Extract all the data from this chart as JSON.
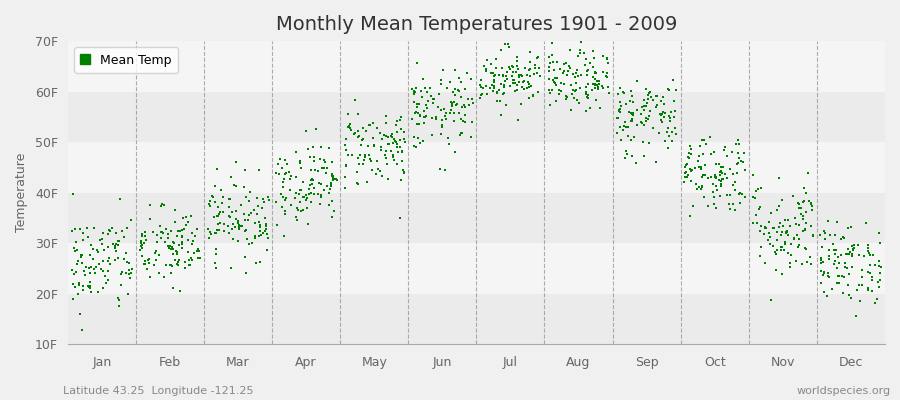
{
  "title": "Monthly Mean Temperatures 1901 - 2009",
  "ylabel": "Temperature",
  "ylim": [
    10,
    70
  ],
  "yticks": [
    10,
    20,
    30,
    40,
    50,
    60,
    70
  ],
  "ytick_labels": [
    "10F",
    "20F",
    "30F",
    "40F",
    "50F",
    "60F",
    "70F"
  ],
  "months": [
    "Jan",
    "Feb",
    "Mar",
    "Apr",
    "May",
    "Jun",
    "Jul",
    "Aug",
    "Sep",
    "Oct",
    "Nov",
    "Dec"
  ],
  "monthly_means": [
    26,
    29,
    35,
    42,
    49,
    56,
    63,
    62,
    55,
    44,
    33,
    26
  ],
  "monthly_stds": [
    5,
    4,
    4,
    4,
    4,
    4,
    3,
    3,
    4,
    4,
    5,
    4
  ],
  "n_years": 109,
  "dot_color": "#008000",
  "dot_size": 3,
  "bg_color": "#f0f0f0",
  "plot_bg_color": "#f0f0f0",
  "legend_label": "Mean Temp",
  "footer_left": "Latitude 43.25  Longitude -121.25",
  "footer_right": "worldspecies.org",
  "title_fontsize": 14,
  "label_fontsize": 9,
  "tick_fontsize": 9,
  "footer_fontsize": 8,
  "grid_color": "#cccccc",
  "dashed_line_color": "#999999",
  "band_colors": [
    "#ebebeb",
    "#f5f5f5"
  ]
}
